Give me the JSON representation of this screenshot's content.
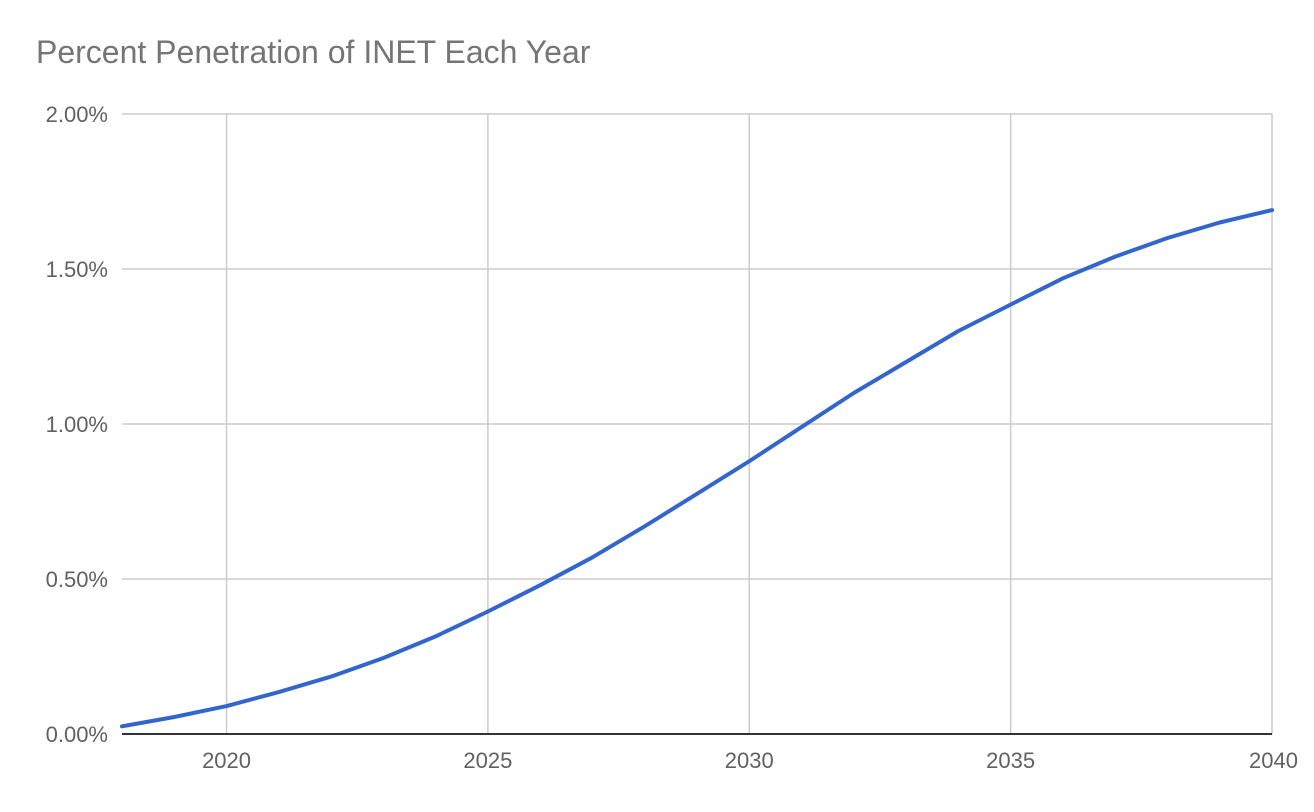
{
  "chart_data": {
    "type": "line",
    "title": "Percent Penetration of INET Each Year",
    "xlabel": "",
    "ylabel": "",
    "xlim": [
      2018,
      2040
    ],
    "ylim": [
      0,
      0.02
    ],
    "x_ticks": [
      2020,
      2025,
      2030,
      2035,
      2040
    ],
    "x_tick_labels": [
      "2020",
      "2025",
      "2030",
      "2035",
      "2040"
    ],
    "y_ticks": [
      0,
      0.005,
      0.01,
      0.015,
      0.02
    ],
    "y_tick_labels": [
      "0.00%",
      "0.50%",
      "1.00%",
      "1.50%",
      "2.00%"
    ],
    "grid": true,
    "legend": "none",
    "line_color": "#3366cc",
    "series": [
      {
        "x": [
          2018,
          2019,
          2020,
          2021,
          2022,
          2023,
          2024,
          2025,
          2026,
          2027,
          2028,
          2029,
          2030,
          2031,
          2032,
          2033,
          2034,
          2035,
          2036,
          2037,
          2038,
          2039,
          2040
        ],
        "values": [
          0.00025,
          0.00055,
          0.0009,
          0.00135,
          0.00185,
          0.00245,
          0.00315,
          0.00395,
          0.0048,
          0.0057,
          0.0067,
          0.00775,
          0.0088,
          0.0099,
          0.011,
          0.012,
          0.013,
          0.01385,
          0.0147,
          0.0154,
          0.016,
          0.0165,
          0.0169
        ]
      }
    ]
  }
}
